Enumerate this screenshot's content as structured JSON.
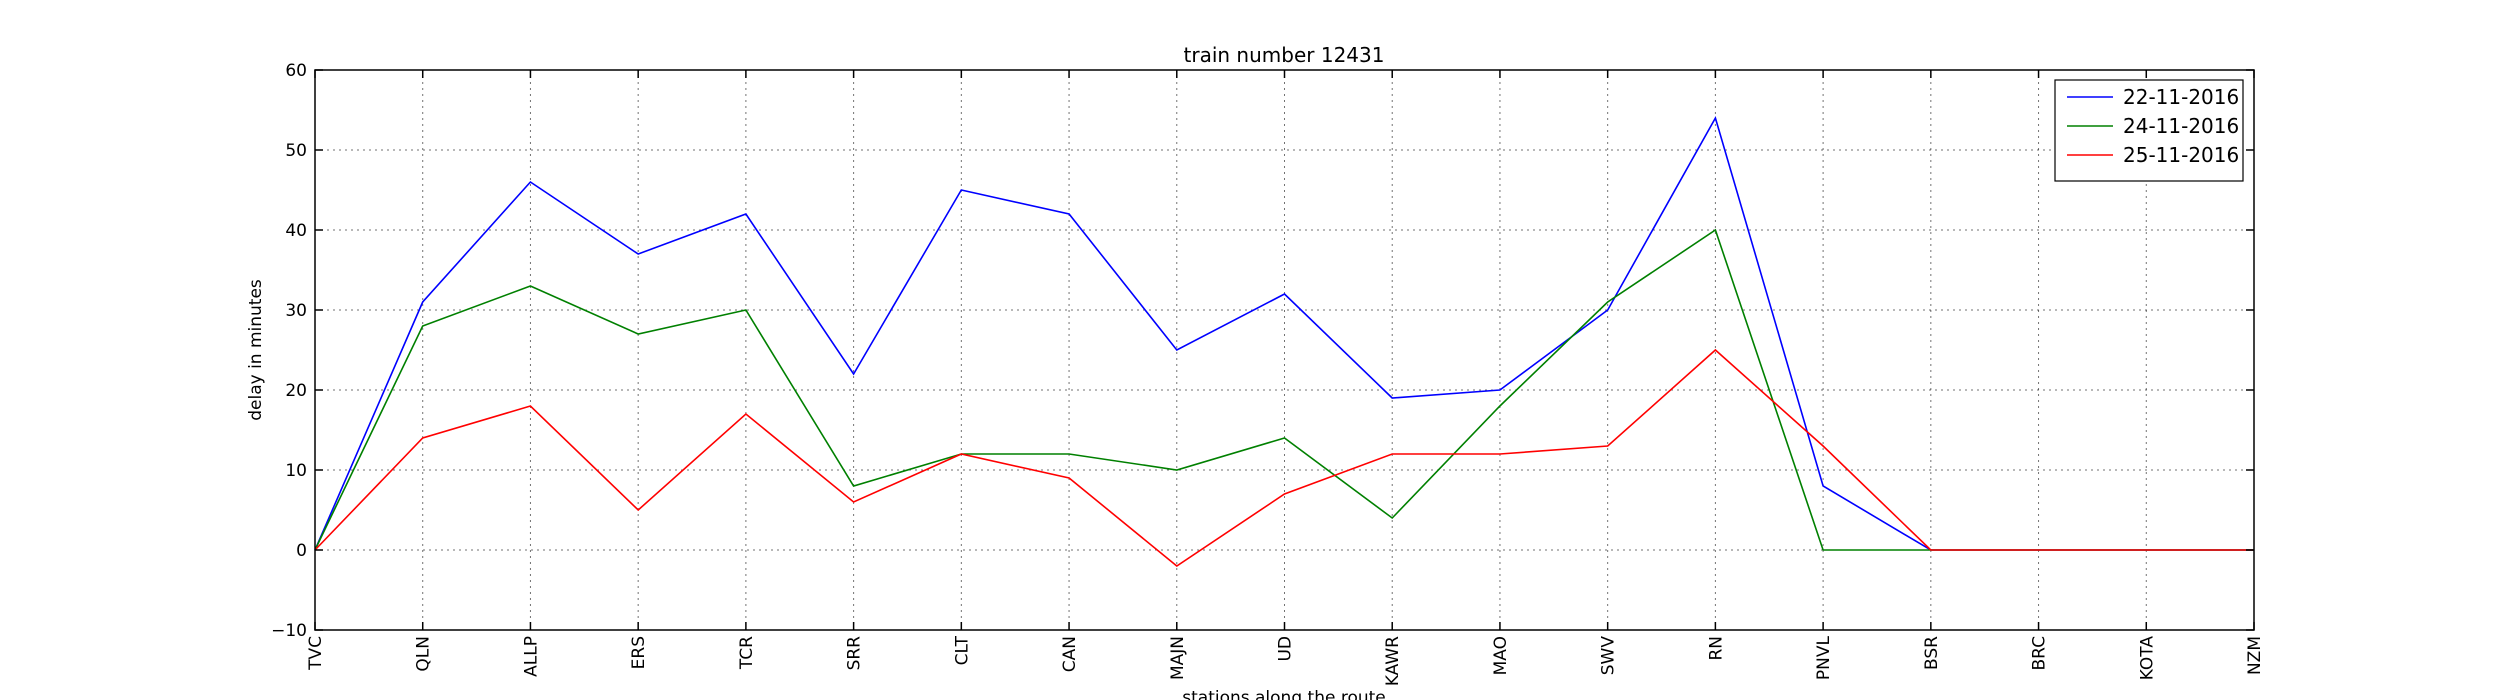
{
  "chart_data": {
    "type": "line",
    "title": "train number 12431",
    "xlabel": "stations along the route",
    "ylabel": "delay in minutes",
    "ylim": [
      -10,
      60
    ],
    "yticks": [
      "60",
      "50",
      "40",
      "30",
      "20",
      "10",
      "0",
      "−10"
    ],
    "ytick_values": [
      60,
      50,
      40,
      30,
      20,
      10,
      0,
      -10
    ],
    "grid": true,
    "legend_position": "top-right",
    "categories": [
      "TVC",
      "QLN",
      "ALLP",
      "ERS",
      "TCR",
      "SRR",
      "CLT",
      "CAN",
      "MAJN",
      "UD",
      "KAWR",
      "MAO",
      "SWV",
      "RN",
      "PNVL",
      "BSR",
      "BRC",
      "KOTA",
      "NZM"
    ],
    "series": [
      {
        "name": "22-11-2016",
        "color": "#0000ff",
        "values": [
          0,
          31,
          46,
          37,
          42,
          22,
          45,
          42,
          25,
          32,
          19,
          20,
          30,
          54,
          8,
          0,
          0,
          0,
          0
        ]
      },
      {
        "name": "24-11-2016",
        "color": "#008000",
        "values": [
          0,
          28,
          33,
          27,
          30,
          8,
          12,
          12,
          10,
          14,
          4,
          18,
          31,
          40,
          0,
          0,
          0,
          0,
          0
        ]
      },
      {
        "name": "25-11-2016",
        "color": "#ff0000",
        "values": [
          0,
          14,
          18,
          5,
          17,
          6,
          12,
          9,
          -2,
          7,
          12,
          12,
          13,
          25,
          13,
          0,
          0,
          0,
          0
        ]
      }
    ]
  }
}
